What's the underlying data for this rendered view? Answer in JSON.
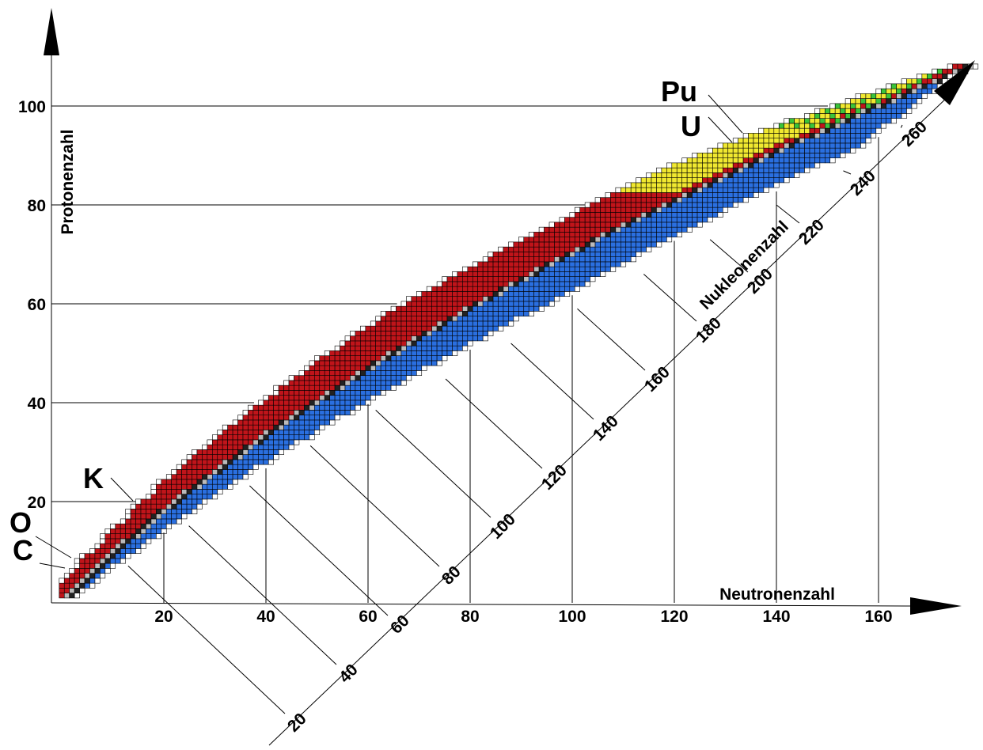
{
  "axes": {
    "protons": {
      "label": "Protonenzahl",
      "ticks": [
        20,
        40,
        60,
        80,
        100
      ]
    },
    "neutrons": {
      "label": "Neutronenzahl",
      "ticks": [
        20,
        40,
        60,
        80,
        100,
        120,
        140,
        160
      ]
    },
    "nucleons": {
      "label": "Nukleonenzahl",
      "ticks": [
        20,
        40,
        60,
        80,
        100,
        120,
        140,
        160,
        180,
        200,
        220,
        240,
        260
      ]
    }
  },
  "elements": [
    {
      "symbol": "Pu"
    },
    {
      "symbol": "U"
    },
    {
      "symbol": "K"
    },
    {
      "symbol": "O"
    },
    {
      "symbol": "C"
    }
  ]
}
